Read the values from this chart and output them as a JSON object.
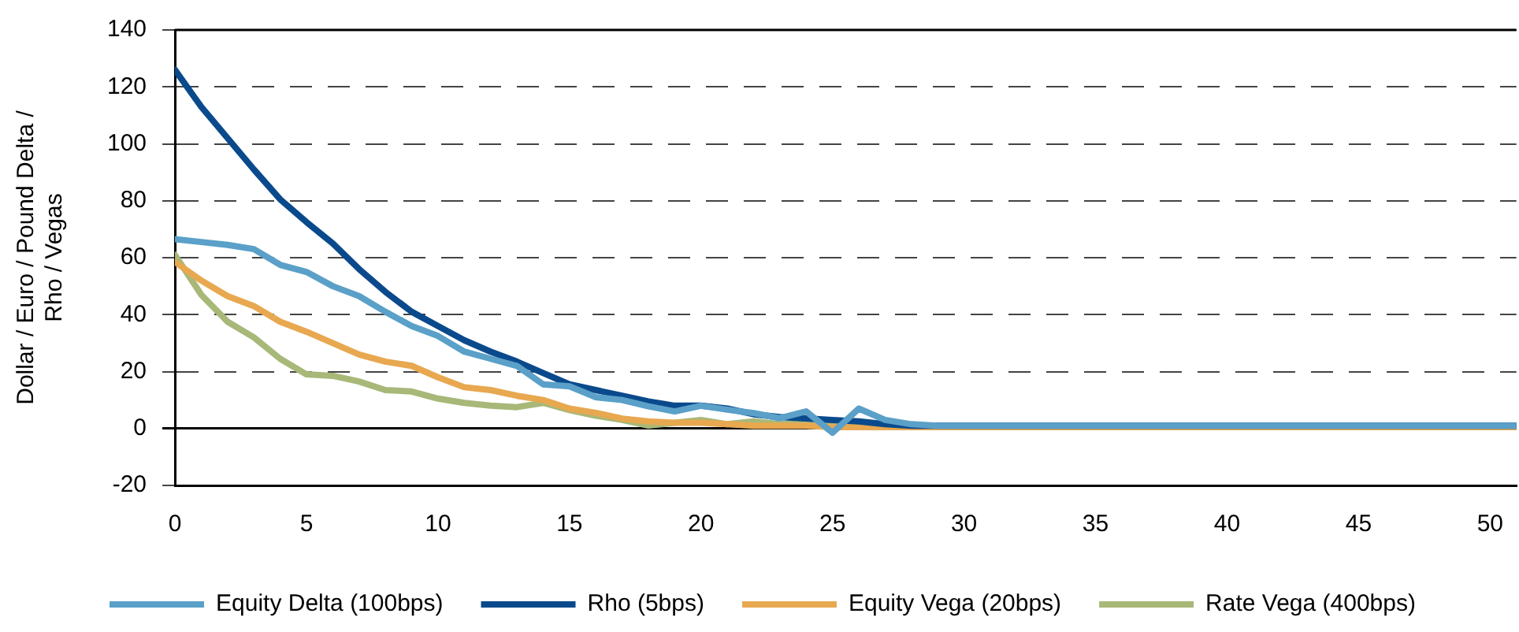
{
  "chart_data": {
    "type": "line",
    "ylabel": "Dollar / Euro / Pound Delta / Rho / Vegas",
    "x": [
      0,
      1,
      2,
      3,
      4,
      5,
      6,
      7,
      8,
      9,
      10,
      11,
      12,
      13,
      14,
      15,
      16,
      17,
      18,
      19,
      20,
      21,
      22,
      23,
      24,
      25,
      26,
      27,
      28,
      29,
      30,
      31,
      32,
      33,
      34,
      35,
      36,
      37,
      38,
      39,
      40,
      41,
      42,
      43,
      44,
      45,
      46,
      47,
      48,
      49,
      50,
      51
    ],
    "series": [
      {
        "name": "Equity Delta (100bps)",
        "color": "#5aa0c8",
        "values": [
          66.5,
          65.5,
          64.5,
          63,
          57.5,
          55,
          50,
          46.5,
          41,
          36,
          32.5,
          27,
          24.5,
          22,
          15.5,
          14.8,
          11,
          10,
          7.8,
          6,
          8,
          6.6,
          5.4,
          3.6,
          6,
          -1.5,
          7,
          3,
          1.5,
          1,
          1,
          1,
          1,
          1,
          1,
          1,
          1,
          1,
          1,
          1,
          1,
          1,
          1,
          1,
          1,
          1,
          1,
          1,
          1,
          1,
          1,
          1
        ]
      },
      {
        "name": "Rho (5bps)",
        "color": "#0a4a8c",
        "values": [
          126,
          113,
          102,
          91,
          80.5,
          72.5,
          65,
          56,
          48,
          41,
          36,
          31,
          27,
          23.5,
          19.5,
          15.5,
          13.5,
          11.5,
          9.5,
          8,
          8,
          7,
          5,
          4,
          3.5,
          3,
          2.5,
          1.5,
          1,
          1,
          1,
          1,
          1,
          1,
          1,
          1,
          1,
          1,
          1,
          1,
          1,
          1,
          1,
          1,
          1,
          1,
          1,
          1,
          1,
          1,
          1,
          1
        ]
      },
      {
        "name": "Equity Vega (20bps)",
        "color": "#e8a850",
        "values": [
          58.5,
          52,
          46.5,
          43,
          37.5,
          34,
          30,
          26,
          23.5,
          22,
          18,
          14.5,
          13.5,
          11.5,
          10,
          7,
          5.5,
          3.5,
          2.5,
          2,
          2,
          1.5,
          1,
          1,
          1,
          0.5,
          0.5,
          0.5,
          0.5,
          0.5,
          0.5,
          0.5,
          0.5,
          0.5,
          0.5,
          0.5,
          0.5,
          0.5,
          0.5,
          0.5,
          0.5,
          0.5,
          0.5,
          0.5,
          0.5,
          0.5,
          0.5,
          0.5,
          0.5,
          0.5,
          0.5,
          0.5
        ]
      },
      {
        "name": "Rate Vega (400bps)",
        "color": "#a8b878",
        "values": [
          61,
          47,
          37.5,
          32,
          24.5,
          19,
          18.5,
          16.5,
          13.5,
          13,
          10.5,
          9,
          8,
          7.5,
          9,
          6.5,
          4.5,
          3,
          1,
          2,
          3,
          1.5,
          2.5,
          1.5,
          2,
          1.5,
          0.5,
          1,
          1,
          1,
          1,
          1,
          1,
          1,
          1,
          1,
          1,
          1,
          1,
          1,
          1,
          1,
          1,
          1,
          1,
          1,
          1,
          1,
          1,
          1,
          1,
          1
        ]
      }
    ],
    "xlim": [
      0,
      51
    ],
    "xticks": [
      0,
      5,
      10,
      15,
      20,
      25,
      30,
      35,
      40,
      45,
      50
    ],
    "ylim": [
      -20,
      140
    ],
    "yticks": [
      -20,
      0,
      20,
      40,
      60,
      80,
      100,
      120,
      140
    ],
    "grid": "y",
    "legend": "bottom",
    "marker": "none",
    "line_style": "solid"
  }
}
